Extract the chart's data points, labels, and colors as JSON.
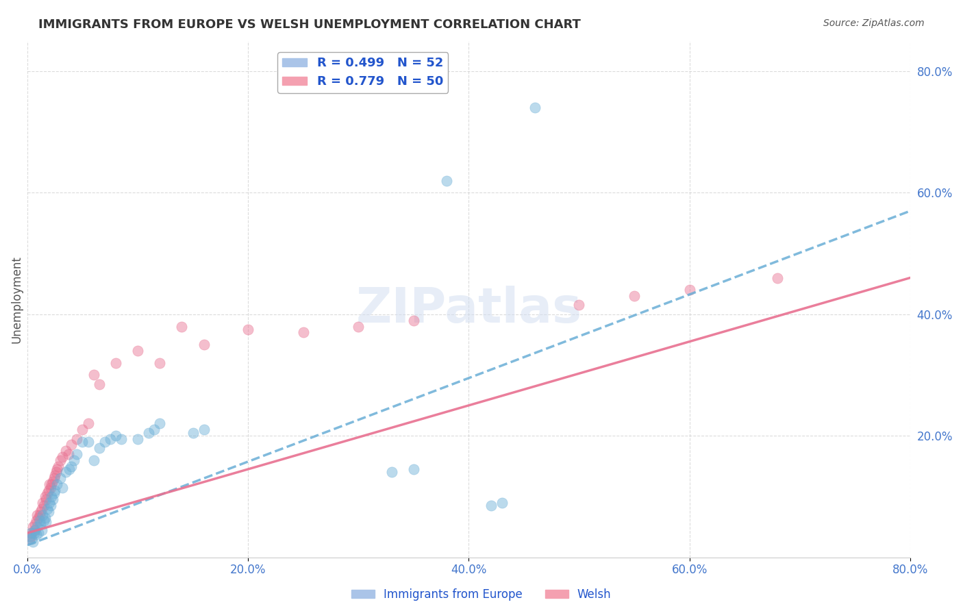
{
  "title": "IMMIGRANTS FROM EUROPE VS WELSH UNEMPLOYMENT CORRELATION CHART",
  "source": "Source: ZipAtlas.com",
  "xlabel_bottom": "",
  "ylabel": "Unemployment",
  "x_tick_labels": [
    "0.0%",
    "20.0%",
    "40.0%",
    "60.0%",
    "80.0%"
  ],
  "y_tick_labels_right": [
    "80.0%",
    "60.0%",
    "40.0%",
    "20.0%"
  ],
  "xlim": [
    0.0,
    0.8
  ],
  "ylim": [
    0.0,
    0.85
  ],
  "legend_entries": [
    {
      "label": "R = 0.499   N = 52",
      "color": "#aac4e8"
    },
    {
      "label": "R = 0.779   N = 50",
      "color": "#f4a0b0"
    }
  ],
  "blue_color": "#6aaed6",
  "pink_color": "#e87090",
  "legend_label_color": "#2255cc",
  "axis_color": "#4477cc",
  "grid_color": "#cccccc",
  "watermark": "ZIPatlas",
  "blue_scatter": [
    [
      0.002,
      0.035
    ],
    [
      0.003,
      0.04
    ],
    [
      0.004,
      0.03
    ],
    [
      0.005,
      0.025
    ],
    [
      0.006,
      0.04
    ],
    [
      0.007,
      0.045
    ],
    [
      0.008,
      0.038
    ],
    [
      0.009,
      0.05
    ],
    [
      0.01,
      0.04
    ],
    [
      0.011,
      0.06
    ],
    [
      0.012,
      0.055
    ],
    [
      0.013,
      0.045
    ],
    [
      0.014,
      0.07
    ],
    [
      0.015,
      0.06
    ],
    [
      0.016,
      0.065
    ],
    [
      0.017,
      0.058
    ],
    [
      0.018,
      0.08
    ],
    [
      0.019,
      0.075
    ],
    [
      0.02,
      0.09
    ],
    [
      0.021,
      0.085
    ],
    [
      0.022,
      0.1
    ],
    [
      0.023,
      0.095
    ],
    [
      0.024,
      0.105
    ],
    [
      0.025,
      0.11
    ],
    [
      0.027,
      0.12
    ],
    [
      0.03,
      0.13
    ],
    [
      0.032,
      0.115
    ],
    [
      0.035,
      0.14
    ],
    [
      0.038,
      0.145
    ],
    [
      0.04,
      0.15
    ],
    [
      0.042,
      0.16
    ],
    [
      0.045,
      0.17
    ],
    [
      0.05,
      0.19
    ],
    [
      0.055,
      0.19
    ],
    [
      0.06,
      0.16
    ],
    [
      0.065,
      0.18
    ],
    [
      0.07,
      0.19
    ],
    [
      0.075,
      0.195
    ],
    [
      0.08,
      0.2
    ],
    [
      0.085,
      0.195
    ],
    [
      0.1,
      0.195
    ],
    [
      0.11,
      0.205
    ],
    [
      0.115,
      0.21
    ],
    [
      0.12,
      0.22
    ],
    [
      0.15,
      0.205
    ],
    [
      0.16,
      0.21
    ],
    [
      0.33,
      0.14
    ],
    [
      0.35,
      0.145
    ],
    [
      0.38,
      0.62
    ],
    [
      0.42,
      0.085
    ],
    [
      0.43,
      0.09
    ],
    [
      0.46,
      0.74
    ]
  ],
  "pink_scatter": [
    [
      0.002,
      0.03
    ],
    [
      0.003,
      0.035
    ],
    [
      0.004,
      0.04
    ],
    [
      0.005,
      0.05
    ],
    [
      0.006,
      0.045
    ],
    [
      0.007,
      0.055
    ],
    [
      0.008,
      0.06
    ],
    [
      0.009,
      0.07
    ],
    [
      0.01,
      0.065
    ],
    [
      0.011,
      0.07
    ],
    [
      0.012,
      0.075
    ],
    [
      0.013,
      0.08
    ],
    [
      0.014,
      0.09
    ],
    [
      0.015,
      0.085
    ],
    [
      0.016,
      0.1
    ],
    [
      0.017,
      0.095
    ],
    [
      0.018,
      0.105
    ],
    [
      0.019,
      0.11
    ],
    [
      0.02,
      0.12
    ],
    [
      0.021,
      0.115
    ],
    [
      0.022,
      0.12
    ],
    [
      0.023,
      0.125
    ],
    [
      0.024,
      0.13
    ],
    [
      0.025,
      0.135
    ],
    [
      0.026,
      0.14
    ],
    [
      0.027,
      0.145
    ],
    [
      0.028,
      0.15
    ],
    [
      0.03,
      0.16
    ],
    [
      0.032,
      0.165
    ],
    [
      0.035,
      0.175
    ],
    [
      0.037,
      0.17
    ],
    [
      0.04,
      0.185
    ],
    [
      0.045,
      0.195
    ],
    [
      0.05,
      0.21
    ],
    [
      0.055,
      0.22
    ],
    [
      0.06,
      0.3
    ],
    [
      0.065,
      0.285
    ],
    [
      0.08,
      0.32
    ],
    [
      0.1,
      0.34
    ],
    [
      0.12,
      0.32
    ],
    [
      0.14,
      0.38
    ],
    [
      0.16,
      0.35
    ],
    [
      0.2,
      0.375
    ],
    [
      0.25,
      0.37
    ],
    [
      0.3,
      0.38
    ],
    [
      0.35,
      0.39
    ],
    [
      0.5,
      0.415
    ],
    [
      0.55,
      0.43
    ],
    [
      0.6,
      0.44
    ],
    [
      0.68,
      0.46
    ]
  ],
  "blue_line_x": [
    0.0,
    0.8
  ],
  "blue_line_y": [
    0.02,
    0.57
  ],
  "pink_line_x": [
    0.0,
    0.8
  ],
  "pink_line_y": [
    0.04,
    0.46
  ],
  "bottom_legend": [
    {
      "label": "Immigrants from Europe",
      "color": "#aac4e8"
    },
    {
      "label": "Welsh",
      "color": "#f4a0b0"
    }
  ]
}
